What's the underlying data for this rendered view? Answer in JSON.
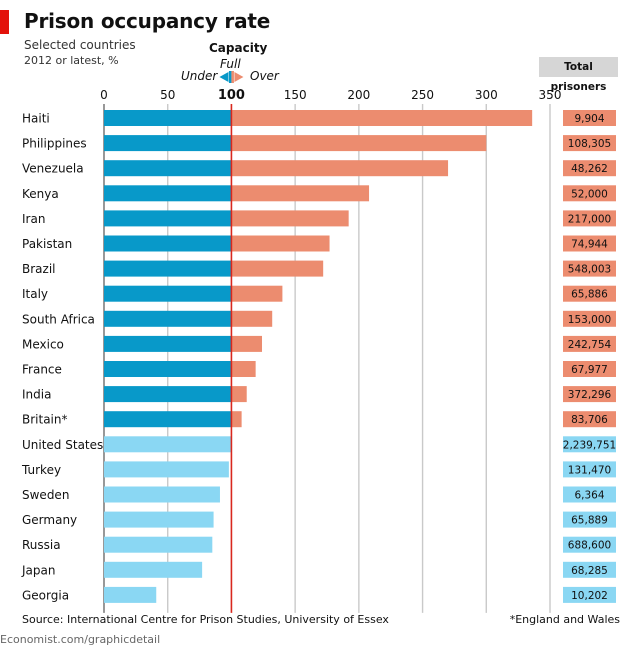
{
  "header": {
    "title": "Prison occupancy rate",
    "subtitle": "Selected countries",
    "note": "2012 or latest, %"
  },
  "legend": {
    "capacity": "Capacity",
    "full": "Full",
    "under": "Under",
    "over": "Over"
  },
  "totals_header": "Total prisoners",
  "footer": {
    "source": "Source: International Centre for Prison Studies, University of Essex",
    "footnote": "*England and Wales",
    "credit": "Economist.com/graphicdetail"
  },
  "colors": {
    "under_dark": "#0899c9",
    "under_light": "#8ad7f3",
    "over": "#ec8c6f",
    "capacity_line": "#d9281e",
    "grid": "#c9c9c9",
    "brand": "#e3120b"
  },
  "chart_data": {
    "type": "bar",
    "orientation": "horizontal",
    "xlim": [
      0,
      350
    ],
    "xticks": [
      0,
      50,
      100,
      150,
      200,
      250,
      300,
      350
    ],
    "reference": 100,
    "categories": [
      "Haiti",
      "Philippines",
      "Venezuela",
      "Kenya",
      "Iran",
      "Pakistan",
      "Brazil",
      "Italy",
      "South Africa",
      "Mexico",
      "France",
      "India",
      "Britain*",
      "United States",
      "Turkey",
      "Sweden",
      "Germany",
      "Russia",
      "Japan",
      "Georgia"
    ],
    "values": [
      336,
      300,
      270,
      208,
      192,
      177,
      172,
      140,
      132,
      124,
      119,
      112,
      108,
      100,
      98,
      91,
      86,
      85,
      77,
      41
    ],
    "total_prisoners": [
      "9,904",
      "108,305",
      "48,262",
      "52,000",
      "217,000",
      "74,944",
      "548,003",
      "65,886",
      "153,000",
      "242,754",
      "67,977",
      "372,296",
      "83,706",
      "2,239,751",
      "131,470",
      "6,364",
      "65,889",
      "688,600",
      "68,285",
      "10,202"
    ]
  }
}
